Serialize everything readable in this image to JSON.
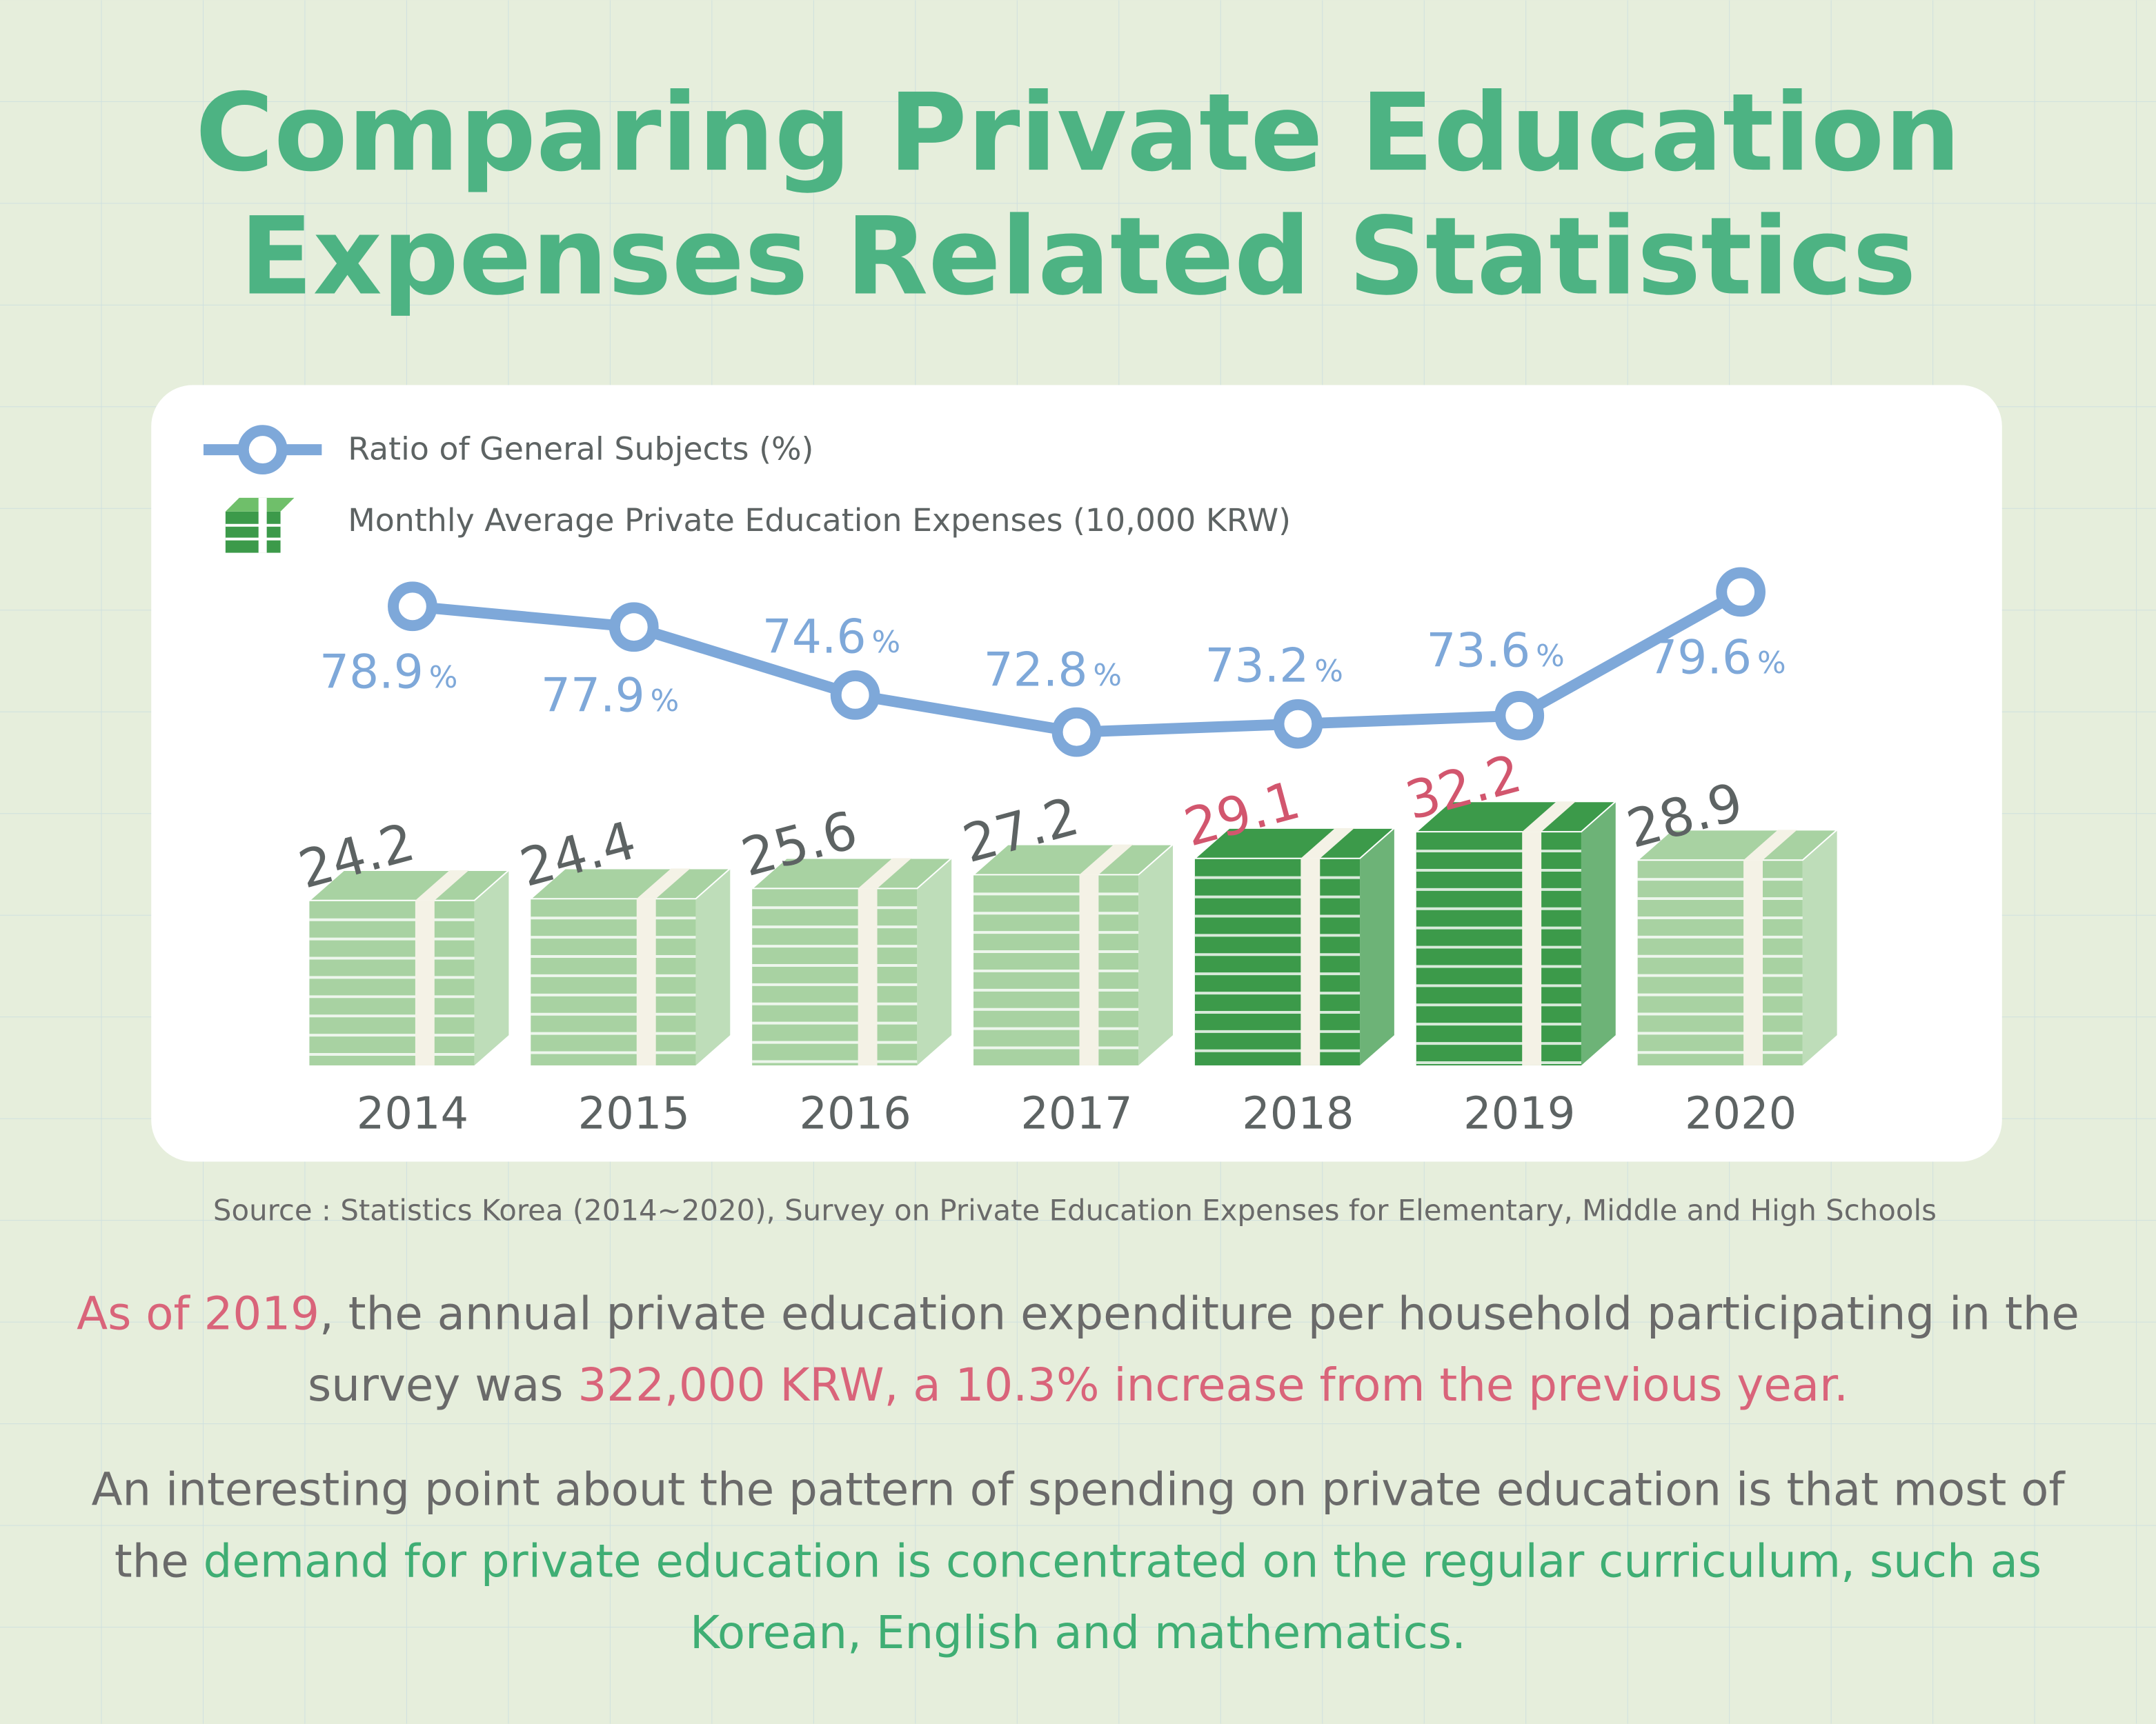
{
  "chart_data": {
    "type": "combo",
    "title_lines": [
      "Comparing Private Education",
      "Expenses Related Statistics"
    ],
    "categories": [
      "2014",
      "2015",
      "2016",
      "2017",
      "2018",
      "2019",
      "2020"
    ],
    "series": [
      {
        "name": "Ratio of General Subjects (%)",
        "type": "line",
        "color": "#7ea8d9",
        "unit": "%",
        "values": [
          78.9,
          77.9,
          74.6,
          72.8,
          73.2,
          73.6,
          79.6
        ]
      },
      {
        "name": "Monthly Average Private Education Expenses (10,000 KRW)",
        "type": "bar",
        "values": [
          24.2,
          24.4,
          25.6,
          27.2,
          29.1,
          32.2,
          28.9
        ],
        "colors": [
          "#a8d2a2",
          "#a8d2a2",
          "#a8d2a2",
          "#a8d2a2",
          "#3c9a4a",
          "#3c9a4a",
          "#a8d2a2"
        ],
        "label_colors": [
          "#5d6363",
          "#5d6363",
          "#5d6363",
          "#5d6363",
          "#d2566e",
          "#d2566e",
          "#5d6363"
        ]
      }
    ]
  },
  "source": "Source : Statistics Korea (2014~2020), Survey on Private Education Expenses for Elementary, Middle and High Schools",
  "paragraphs": [
    [
      {
        "text": "As of 2019",
        "color": "#d9647a"
      },
      {
        "text": ", the annual private education expenditure per household participating in the survey was ",
        "color": "#6a6a6a"
      },
      {
        "text": "322,000 KRW, a 10.3% increase from the previous year.",
        "color": "#d9647a"
      }
    ],
    [
      {
        "text": "An interesting point about the pattern of spending on private education is that most of the ",
        "color": "#6a6a6a"
      },
      {
        "text": "demand for private education is concentrated on the regular curriculum, such as Korean, English and mathematics.",
        "color": "#3fae74"
      }
    ]
  ]
}
